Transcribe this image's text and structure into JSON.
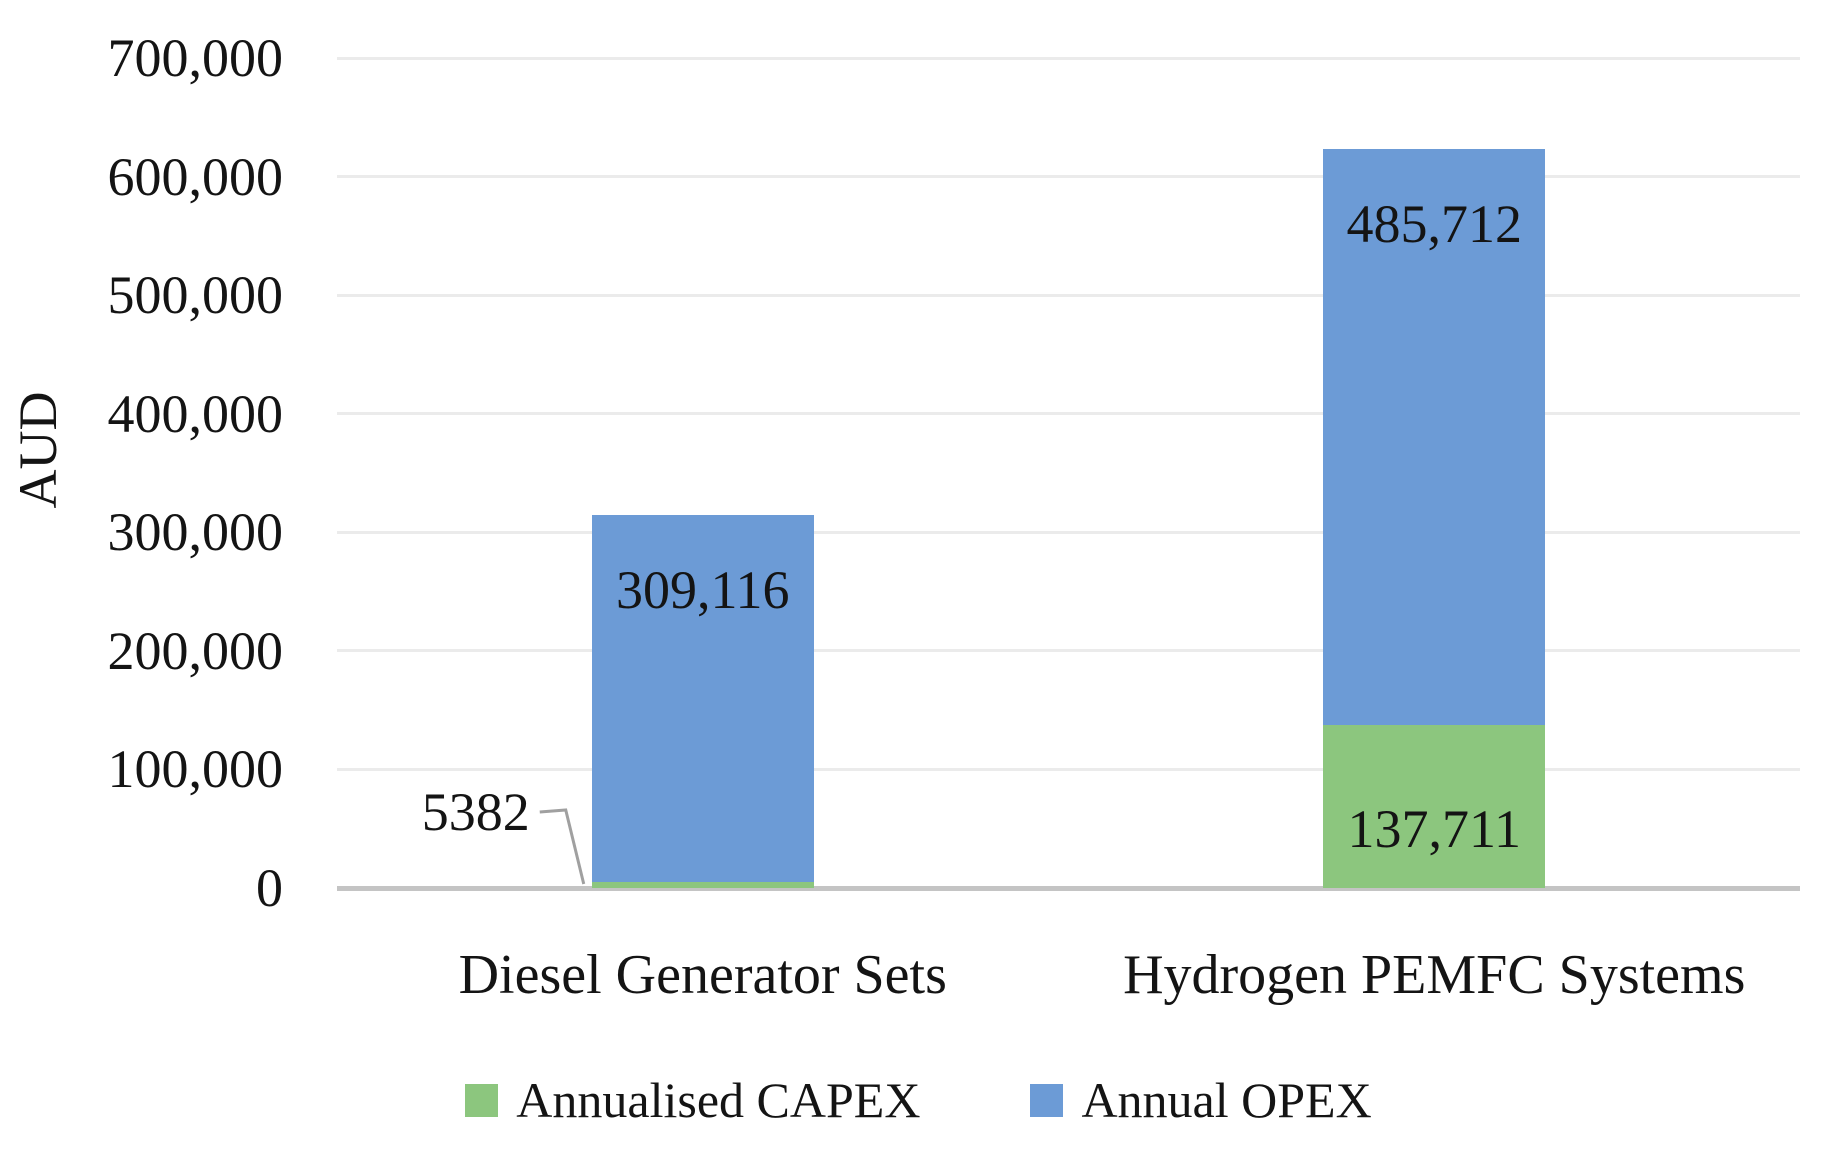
{
  "chart_data": {
    "type": "bar",
    "stacked": true,
    "title": "",
    "xlabel": "",
    "ylabel": "AUD",
    "ylim": [
      0,
      700000
    ],
    "ytick_step": 100000,
    "ytick_labels": [
      "700,000",
      "600,000",
      "500,000",
      "400,000",
      "300,000",
      "200,000",
      "100,000",
      "0"
    ],
    "grid": "horizontal-only",
    "legend_position": "bottom",
    "categories": [
      "Diesel Generator Sets",
      "Hydrogen PEMFC Systems"
    ],
    "series": [
      {
        "name": "Annualised CAPEX",
        "color": "#8CC67E",
        "values": [
          5382,
          137711
        ],
        "data_labels": [
          "5382",
          "137,711"
        ],
        "label_placements": [
          "callout-left",
          "inside-base"
        ]
      },
      {
        "name": "Annual OPEX",
        "color": "#6C9BD6",
        "values": [
          309116,
          485712
        ],
        "data_labels": [
          "309,116",
          "485,712"
        ],
        "label_placements": [
          "inside-top",
          "inside-top"
        ]
      }
    ],
    "axis_colors": {
      "gridline": "#EBEBEB",
      "baseline": "#C4C4C4",
      "callout_line": "#A0A0A0",
      "text": "#141414"
    }
  }
}
